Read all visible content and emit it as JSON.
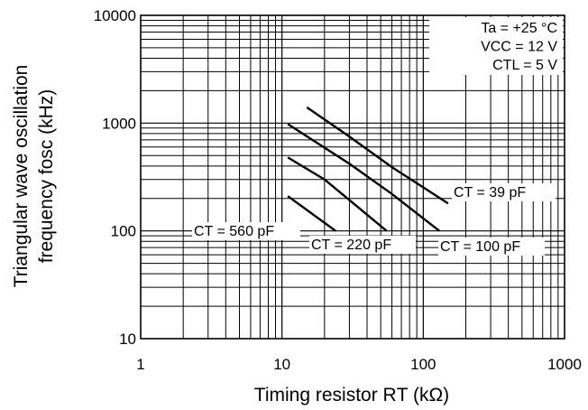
{
  "chart_data": {
    "type": "line",
    "xlabel": "Timing resistor RΤ (kΩ)",
    "ylabel_line1": "Triangular wave oscillation",
    "ylabel_line2": "frequency fosc (kHz)",
    "x_scale": "log",
    "y_scale": "log",
    "xlim": [
      1,
      1000
    ],
    "ylim": [
      10,
      10000
    ],
    "x_ticks": [
      "1",
      "10",
      "100",
      "1000"
    ],
    "y_ticks": [
      "10",
      "100",
      "1000",
      "10000"
    ],
    "grid": true,
    "conditions": [
      "Ta = +25 °C",
      "VCC = 12 V",
      "CTL = 5 V"
    ],
    "series": [
      {
        "name": "CΤ = 39 pF",
        "x": [
          15,
          30,
          60,
          150
        ],
        "y": [
          1400,
          750,
          390,
          180
        ]
      },
      {
        "name": "CΤ = 100 pF",
        "x": [
          11,
          30,
          60,
          130
        ],
        "y": [
          980,
          420,
          220,
          100
        ]
      },
      {
        "name": "CΤ = 220 pF",
        "x": [
          11,
          20,
          55
        ],
        "y": [
          480,
          300,
          100
        ]
      },
      {
        "name": "CΤ = 560 pF",
        "x": [
          11,
          24
        ],
        "y": [
          210,
          100
        ]
      }
    ]
  }
}
